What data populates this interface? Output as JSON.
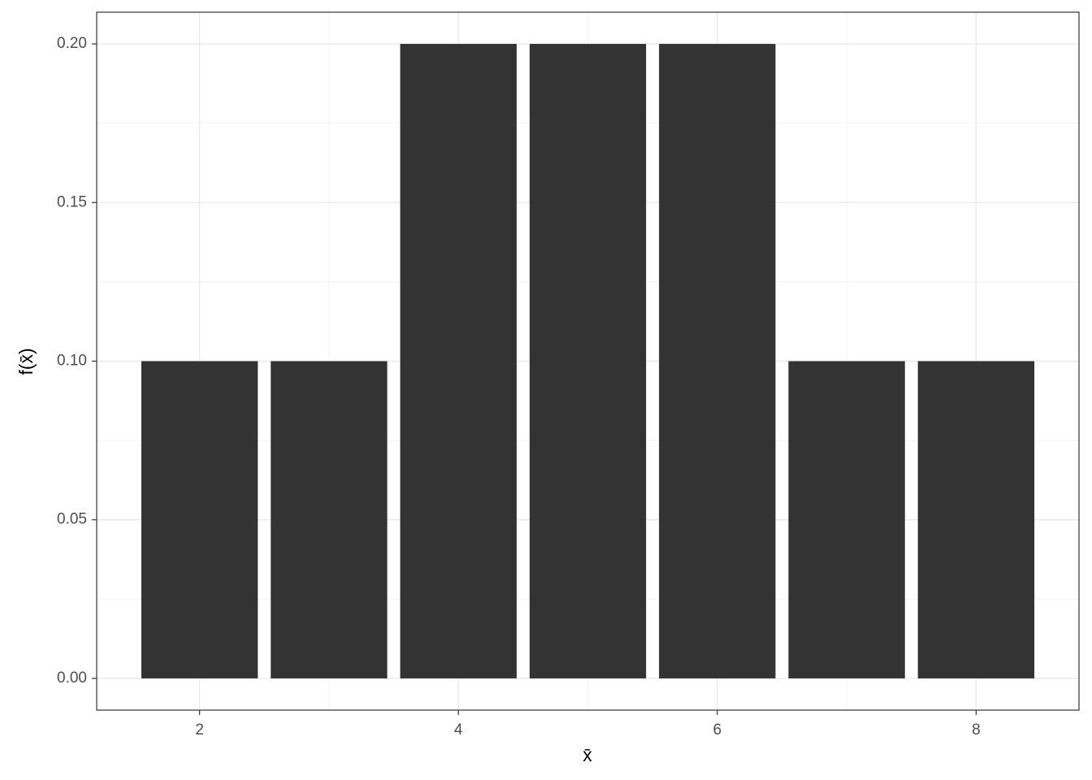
{
  "chart_data": {
    "type": "bar",
    "x_label": "x̄",
    "y_label": "f(x̄)",
    "x": [
      2,
      3,
      4,
      5,
      6,
      7,
      8
    ],
    "values": [
      0.1,
      0.1,
      0.2,
      0.2,
      0.2,
      0.1,
      0.1
    ],
    "color": "#333333",
    "xlim": [
      1.205,
      8.795
    ],
    "xticks": [
      2,
      4,
      6,
      8
    ],
    "ylim": [
      -0.01,
      0.21
    ],
    "yticks": [
      {
        "value": 0,
        "label": "0.00"
      },
      {
        "value": 0.05,
        "label": "0.05"
      },
      {
        "value": 0.1,
        "label": "0.10"
      },
      {
        "value": 0.15,
        "label": "0.15"
      },
      {
        "value": 0.2,
        "label": "0.20"
      }
    ],
    "grid": true
  }
}
